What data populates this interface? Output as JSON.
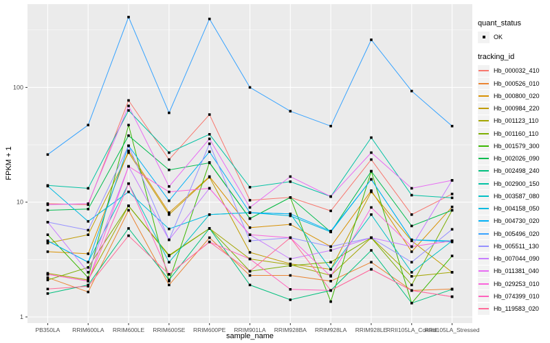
{
  "colors": {
    "panel_bg": "#EBEBEB",
    "grid": "#FFFFFF",
    "key_bg": "#F2F2F2",
    "tick_label": "#4D4D4D",
    "tick_mark": "#333333",
    "point": "#000000"
  },
  "legend": {
    "quant_status": {
      "title": "quant_status",
      "items": [
        {
          "label": "OK"
        }
      ]
    },
    "tracking_id": {
      "title": "tracking_id"
    }
  },
  "chart_data": {
    "type": "line",
    "title": "",
    "xlabel": "sample_name",
    "ylabel": "FPKM + 1",
    "yscale": "log10",
    "ylim": [
      1,
      530
    ],
    "yticks": [
      1,
      10,
      100
    ],
    "ytick_labels": [
      "1",
      "10",
      "100"
    ],
    "yticks_minor": [
      3.1623,
      31.623,
      316.23
    ],
    "grid": "white major+minor on grey panel, vertical line per category",
    "legend_position": "right",
    "point_marker": "small black square (quant_status = OK)",
    "categories": [
      "PB350LA",
      "RRIM600LA",
      "RRIM600LE",
      "RRIM600SE",
      "RRIM600PE",
      "RRIM901LA",
      "RRIM928BA",
      "RRIM928LA",
      "RRIM928LE",
      "RRII105LA_Control",
      "RRII105LA_Stressed"
    ],
    "series": [
      {
        "name": "Hb_000032_410",
        "color": "#F8766D",
        "values": [
          9.7,
          9.5,
          77,
          23.5,
          58,
          10.4,
          11,
          8.4,
          23.5,
          7.8,
          11.8
        ]
      },
      {
        "name": "Hb_000526_010",
        "color": "#EA8331",
        "values": [
          2.2,
          1.65,
          8.5,
          1.9,
          4.9,
          2.3,
          2.3,
          2.05,
          3.0,
          1.7,
          1.75
        ]
      },
      {
        "name": "Hb_000800_020",
        "color": "#D89000",
        "values": [
          3.7,
          3.55,
          28,
          8.1,
          16.7,
          6.0,
          6.4,
          4.1,
          12.6,
          3.7,
          9.1
        ]
      },
      {
        "name": "Hb_000984_220",
        "color": "#C09B00",
        "values": [
          4.4,
          5.2,
          27,
          7.8,
          16.5,
          3.65,
          2.9,
          2.6,
          12.3,
          4.6,
          2.45
        ]
      },
      {
        "name": "Hb_001123_110",
        "color": "#A3A500",
        "values": [
          2.4,
          2.1,
          9.3,
          3.45,
          5.9,
          3.2,
          2.85,
          2.3,
          4.9,
          2.26,
          2.45
        ]
      },
      {
        "name": "Hb_001160_110",
        "color": "#7CAE00",
        "values": [
          2.1,
          2.7,
          9.3,
          3.4,
          5.9,
          2.5,
          2.8,
          3.0,
          4.9,
          1.9,
          8.5
        ]
      },
      {
        "name": "Hb_001579_300",
        "color": "#39B600",
        "values": [
          5.2,
          2.2,
          47,
          2.05,
          22.2,
          7.2,
          11,
          1.36,
          18.6,
          1.32,
          3.4
        ]
      },
      {
        "name": "Hb_002026_090",
        "color": "#00BB4E",
        "values": [
          8.5,
          8.7,
          38,
          19.1,
          22,
          7.2,
          11,
          5.5,
          18.6,
          6.2,
          8.5
        ]
      },
      {
        "name": "Hb_002498_240",
        "color": "#00BF7D",
        "values": [
          1.6,
          1.9,
          5.9,
          2.1,
          5.9,
          1.9,
          1.41,
          1.7,
          3.8,
          1.32,
          1.74
        ]
      },
      {
        "name": "Hb_002900_150",
        "color": "#00C1A3",
        "values": [
          14,
          13.2,
          63,
          27,
          39,
          13.5,
          15.1,
          11.2,
          36.5,
          11.5,
          10.9
        ]
      },
      {
        "name": "Hb_003587_080",
        "color": "#00BFC4",
        "values": [
          4.6,
          3.0,
          14.5,
          3.0,
          7.8,
          8.1,
          7.9,
          2.6,
          7.8,
          2.45,
          4.6
        ]
      },
      {
        "name": "Hb_004158_050",
        "color": "#00BAE0",
        "values": [
          13.8,
          6.8,
          12.3,
          5.85,
          7.8,
          8.1,
          7.6,
          5.5,
          15.8,
          4.7,
          4.6
        ]
      },
      {
        "name": "Hb_004730_020",
        "color": "#00B0F6",
        "values": [
          4.6,
          3.0,
          31,
          10.3,
          27.5,
          8.1,
          7.9,
          5.6,
          15.8,
          4.7,
          4.5
        ]
      },
      {
        "name": "Hb_005496_020",
        "color": "#35A2FF",
        "values": [
          26,
          47,
          410,
          60,
          395,
          100,
          62,
          46,
          260,
          93,
          46
        ]
      },
      {
        "name": "Hb_005511_130",
        "color": "#9590FF",
        "values": [
          6.7,
          5.7,
          31,
          4.7,
          32.3,
          4.6,
          4.9,
          4.1,
          4.9,
          3.0,
          5.8
        ]
      },
      {
        "name": "Hb_007044_090",
        "color": "#C77CFF",
        "values": [
          6.7,
          2.45,
          20.5,
          4.7,
          13.2,
          5.2,
          3.2,
          3.8,
          4.9,
          4.1,
          15.5
        ]
      },
      {
        "name": "Hb_011381_040",
        "color": "#E76BF3",
        "values": [
          9.5,
          9.7,
          69,
          13.7,
          35.6,
          9.0,
          16.7,
          11.2,
          27,
          13.2,
          15.5
        ]
      },
      {
        "name": "Hb_029253_010",
        "color": "#FA62DB",
        "values": [
          2.35,
          2.05,
          20.5,
          12.3,
          13.2,
          5.2,
          4.9,
          2.26,
          9.0,
          4.1,
          4.6
        ]
      },
      {
        "name": "Hb_074399_010",
        "color": "#FF62BC",
        "values": [
          2.35,
          2.05,
          14.5,
          2.35,
          4.5,
          3.2,
          1.74,
          1.7,
          2.6,
          1.7,
          1.5
        ]
      },
      {
        "name": "Hb_119583_020",
        "color": "#FF6A98",
        "values": [
          1.75,
          1.85,
          5.1,
          2.35,
          4.5,
          2.5,
          4.9,
          1.7,
          2.6,
          1.7,
          1.5
        ]
      }
    ]
  }
}
